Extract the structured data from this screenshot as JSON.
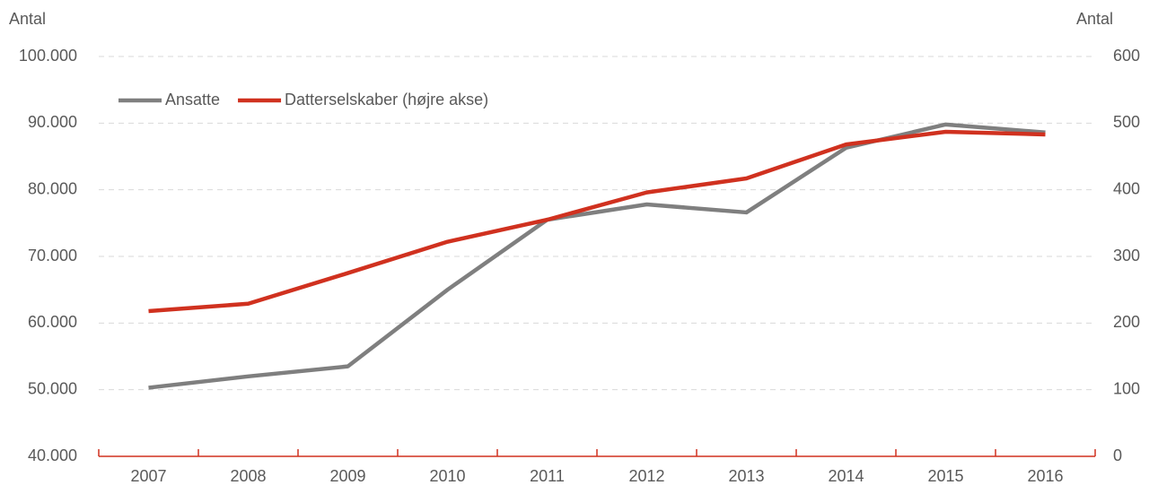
{
  "chart_data": {
    "type": "line",
    "y_label": "Antal",
    "y2_label": "Antal",
    "categories": [
      "2007",
      "2008",
      "2009",
      "2010",
      "2011",
      "2012",
      "2013",
      "2014",
      "2015",
      "2016"
    ],
    "series": [
      {
        "name": "Ansatte",
        "color": "#7f7f7f",
        "values": [
          50300,
          52000,
          53500,
          65000,
          75500,
          77800,
          76600,
          86300,
          89800,
          88600
        ]
      },
      {
        "name": "Datterselskaber (højre akse)",
        "color": "#d0311f",
        "axis": "y2",
        "values": [
          218,
          229,
          275,
          322,
          355,
          396,
          417,
          468,
          487,
          483
        ]
      }
    ],
    "ylim": [
      40000,
      100000
    ],
    "yticks": [
      {
        "value": 40000,
        "label": "40.000"
      },
      {
        "value": 50000,
        "label": "50.000"
      },
      {
        "value": 60000,
        "label": "60.000"
      },
      {
        "value": 70000,
        "label": "70.000"
      },
      {
        "value": 80000,
        "label": "80.000"
      },
      {
        "value": 90000,
        "label": "90.000"
      },
      {
        "value": 100000,
        "label": "100.000"
      }
    ],
    "y2lim": [
      0,
      600
    ],
    "y2ticks": [
      0,
      100,
      200,
      300,
      400,
      500,
      600
    ],
    "grid": true,
    "legend": "top-left"
  }
}
